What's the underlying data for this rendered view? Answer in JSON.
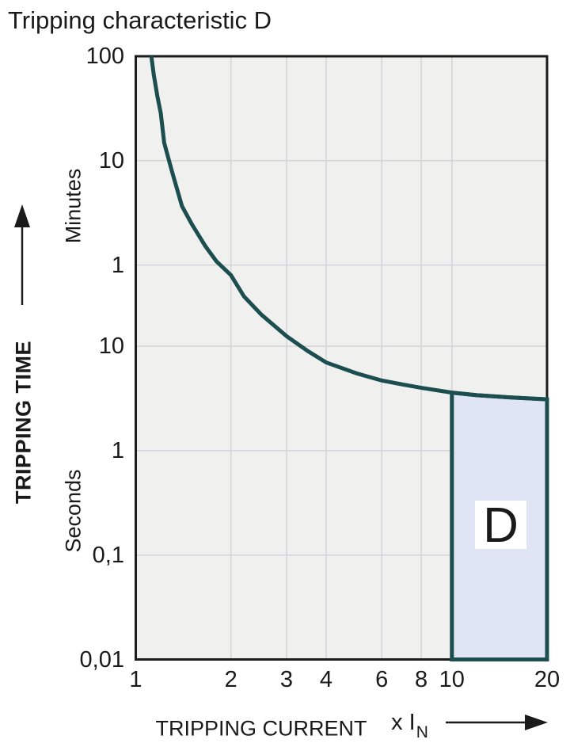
{
  "title": "Tripping characteristic D",
  "chart_data": {
    "type": "line",
    "title": "Tripping characteristic D",
    "x_axis": {
      "label": "TRIPPING CURRENT",
      "unit_prefix": "x I",
      "unit_sub": "N",
      "scale": "log",
      "min": 1,
      "max": 20,
      "ticks": [
        {
          "value": 1,
          "label": "1"
        },
        {
          "value": 2,
          "label": "2"
        },
        {
          "value": 3,
          "label": "3"
        },
        {
          "value": 4,
          "label": "4"
        },
        {
          "value": 6,
          "label": "6"
        },
        {
          "value": 8,
          "label": "8"
        },
        {
          "value": 10,
          "label": "10"
        },
        {
          "value": 20,
          "label": "20"
        }
      ],
      "gridlines": [
        2,
        3,
        4,
        6,
        8,
        10
      ]
    },
    "y_axis": {
      "label": "TRIPPING TIME",
      "scale": "log",
      "unit_top": "Minutes",
      "unit_bottom": "Seconds",
      "min_seconds": 0.01,
      "max_seconds": 6000,
      "ticks": [
        {
          "seconds": 6000,
          "label": "100"
        },
        {
          "seconds": 600,
          "label": "10"
        },
        {
          "seconds": 60,
          "label": "1"
        },
        {
          "seconds": 10,
          "label": "10"
        },
        {
          "seconds": 1,
          "label": "1"
        },
        {
          "seconds": 0.1,
          "label": "0,1"
        },
        {
          "seconds": 0.01,
          "label": "0,01"
        }
      ],
      "gridlines_seconds": [
        600,
        60,
        10,
        1,
        0.1
      ]
    },
    "series": [
      {
        "name": "tripping-curve-D",
        "color": "#1c4e50",
        "points": [
          [
            1.12,
            6000
          ],
          [
            1.14,
            4000
          ],
          [
            1.17,
            2500
          ],
          [
            1.2,
            1700
          ],
          [
            1.23,
            890
          ],
          [
            1.3,
            480
          ],
          [
            1.4,
            220
          ],
          [
            1.5,
            150
          ],
          [
            1.66,
            91
          ],
          [
            1.8,
            65
          ],
          [
            2.0,
            48
          ],
          [
            2.2,
            30
          ],
          [
            2.5,
            20
          ],
          [
            3.0,
            12.5
          ],
          [
            3.5,
            9
          ],
          [
            4.0,
            7
          ],
          [
            5.0,
            5.5
          ],
          [
            6.0,
            4.7
          ],
          [
            7.0,
            4.3
          ],
          [
            8.0,
            4.0
          ],
          [
            10.0,
            3.6
          ],
          [
            12.0,
            3.4
          ],
          [
            15.0,
            3.25
          ],
          [
            20.0,
            3.1
          ]
        ]
      }
    ],
    "region": {
      "label": "D",
      "x_from": 10,
      "x_to": 20,
      "t_from_seconds": 0.01,
      "bounded_above_by": "tripping-curve-D",
      "fill": "#dfe5f4",
      "border": "#1c4e50"
    },
    "colors": {
      "plot_bg": "#f0f0ee",
      "grid": "#d4d4da",
      "border": "#1c1c1c",
      "text": "#1a1a1a"
    }
  }
}
